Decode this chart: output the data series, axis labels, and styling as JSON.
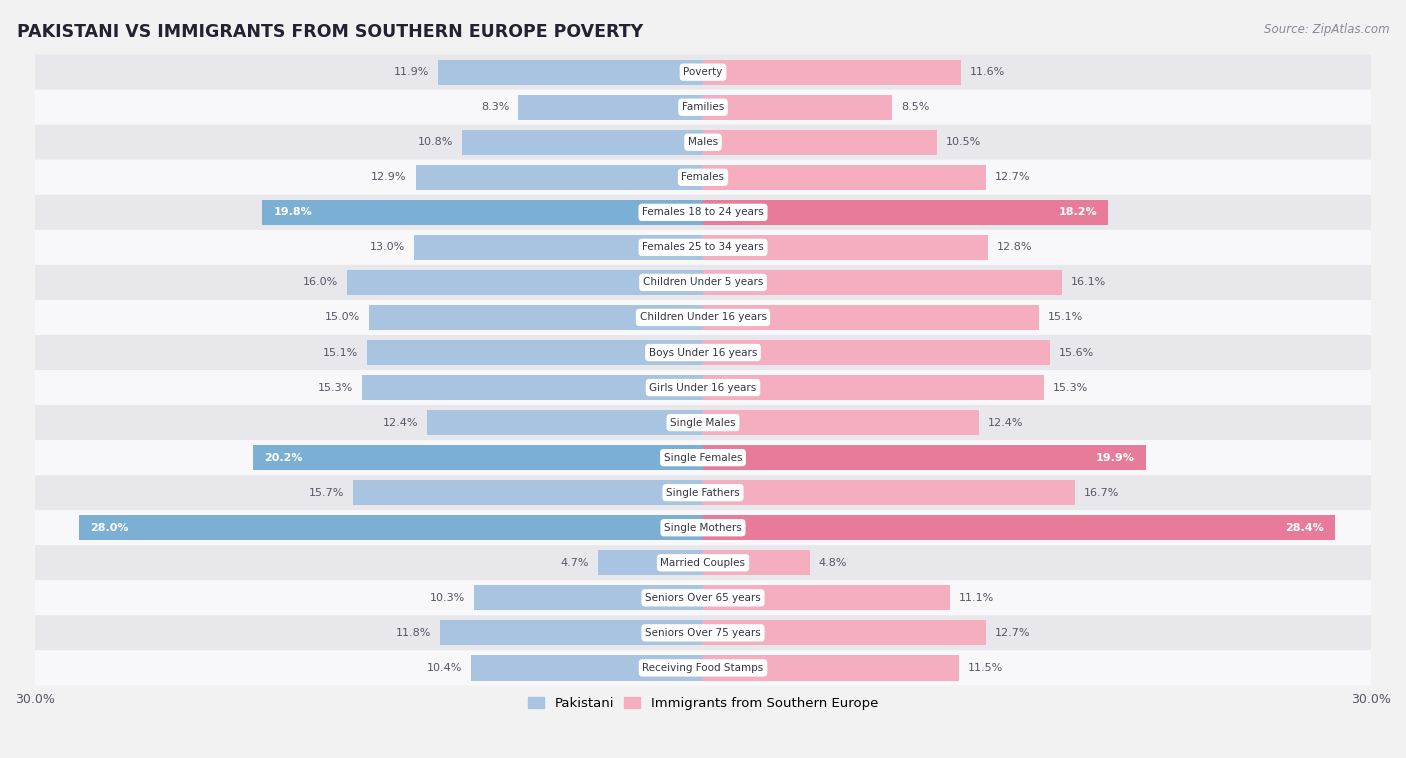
{
  "title": "PAKISTANI VS IMMIGRANTS FROM SOUTHERN EUROPE POVERTY",
  "source": "Source: ZipAtlas.com",
  "categories": [
    "Poverty",
    "Families",
    "Males",
    "Females",
    "Females 18 to 24 years",
    "Females 25 to 34 years",
    "Children Under 5 years",
    "Children Under 16 years",
    "Boys Under 16 years",
    "Girls Under 16 years",
    "Single Males",
    "Single Females",
    "Single Fathers",
    "Single Mothers",
    "Married Couples",
    "Seniors Over 65 years",
    "Seniors Over 75 years",
    "Receiving Food Stamps"
  ],
  "pakistani": [
    11.9,
    8.3,
    10.8,
    12.9,
    19.8,
    13.0,
    16.0,
    15.0,
    15.1,
    15.3,
    12.4,
    20.2,
    15.7,
    28.0,
    4.7,
    10.3,
    11.8,
    10.4
  ],
  "immigrants": [
    11.6,
    8.5,
    10.5,
    12.7,
    18.2,
    12.8,
    16.1,
    15.1,
    15.6,
    15.3,
    12.4,
    19.9,
    16.7,
    28.4,
    4.8,
    11.1,
    12.7,
    11.5
  ],
  "pakistani_color_normal": "#a8c4e0",
  "pakistani_color_highlight": "#7bafd4",
  "immigrants_color_normal": "#f4aec0",
  "immigrants_color_highlight": "#e87a9a",
  "highlight_indices": [
    4,
    11,
    13
  ],
  "axis_max": 30.0,
  "bg_color": "#f2f2f2",
  "row_color_even": "#e8e8ec",
  "row_color_odd": "#f8f8fa",
  "legend_pakistani": "Pakistani",
  "legend_immigrants": "Immigrants from Southern Europe",
  "label_color_normal": "#555566",
  "label_color_highlight": "#ffffff"
}
